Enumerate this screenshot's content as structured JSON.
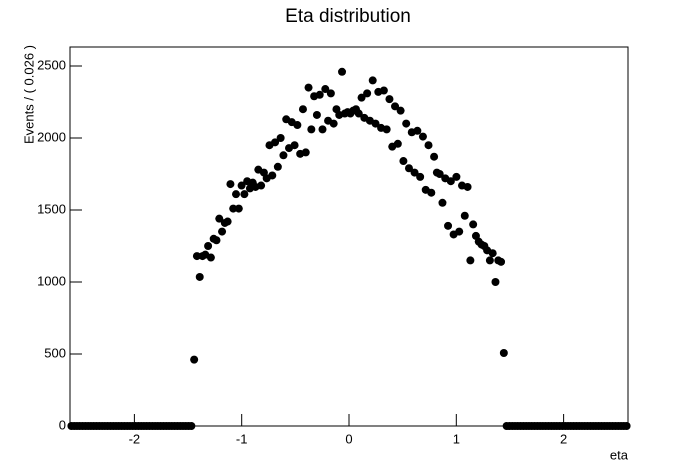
{
  "chart_data": {
    "type": "scatter",
    "title": "Eta distribution",
    "x_label": "eta",
    "y_label": "Events / ( 0.026 )",
    "color": "#000000",
    "xlim": [
      -2.6,
      2.6
    ],
    "ylim": [
      0,
      2632
    ],
    "xticks": [
      -2,
      -1,
      0,
      1,
      2
    ],
    "yticks": [
      0,
      500,
      1000,
      1500,
      2000,
      2500
    ],
    "x": [
      -2.587,
      -2.561,
      -2.535,
      -2.509,
      -2.483,
      -2.457,
      -2.431,
      -2.405,
      -2.379,
      -2.353,
      -2.327,
      -2.301,
      -2.275,
      -2.249,
      -2.223,
      -2.197,
      -2.171,
      -2.145,
      -2.119,
      -2.093,
      -2.067,
      -2.041,
      -2.015,
      -1.989,
      -1.963,
      -1.937,
      -1.911,
      -1.885,
      -1.859,
      -1.833,
      -1.807,
      -1.781,
      -1.755,
      -1.729,
      -1.703,
      -1.677,
      -1.651,
      -1.625,
      -1.599,
      -1.573,
      -1.547,
      -1.521,
      -1.495,
      -1.469,
      -1.443,
      -1.417,
      -1.391,
      -1.365,
      -1.339,
      -1.313,
      -1.287,
      -1.261,
      -1.235,
      -1.209,
      -1.183,
      -1.157,
      -1.131,
      -1.105,
      -1.079,
      -1.053,
      -1.027,
      -1.001,
      -0.975,
      -0.949,
      -0.923,
      -0.897,
      -0.871,
      -0.845,
      -0.819,
      -0.793,
      -0.767,
      -0.741,
      -0.715,
      -0.689,
      -0.663,
      -0.637,
      -0.611,
      -0.585,
      -0.559,
      -0.533,
      -0.507,
      -0.481,
      -0.455,
      -0.429,
      -0.403,
      -0.377,
      -0.351,
      -0.325,
      -0.299,
      -0.273,
      -0.247,
      -0.221,
      -0.195,
      -0.169,
      -0.143,
      -0.117,
      -0.091,
      -0.065,
      -0.039,
      -0.013,
      0.013,
      0.039,
      0.065,
      0.091,
      0.117,
      0.143,
      0.169,
      0.195,
      0.221,
      0.247,
      0.273,
      0.299,
      0.325,
      0.351,
      0.377,
      0.403,
      0.429,
      0.455,
      0.481,
      0.507,
      0.533,
      0.559,
      0.585,
      0.611,
      0.637,
      0.663,
      0.689,
      0.715,
      0.741,
      0.767,
      0.793,
      0.819,
      0.845,
      0.871,
      0.897,
      0.923,
      0.949,
      0.975,
      1.001,
      1.027,
      1.053,
      1.079,
      1.105,
      1.131,
      1.157,
      1.183,
      1.209,
      1.235,
      1.261,
      1.287,
      1.313,
      1.339,
      1.365,
      1.391,
      1.417,
      1.443,
      1.469,
      1.495,
      1.521,
      1.547,
      1.573,
      1.599,
      1.625,
      1.651,
      1.677,
      1.703,
      1.729,
      1.755,
      1.781,
      1.807,
      1.833,
      1.859,
      1.885,
      1.911,
      1.937,
      1.963,
      1.989,
      2.015,
      2.041,
      2.067,
      2.093,
      2.119,
      2.145,
      2.171,
      2.197,
      2.223,
      2.249,
      2.275,
      2.301,
      2.327,
      2.353,
      2.379,
      2.405,
      2.431,
      2.457,
      2.483,
      2.509,
      2.535,
      2.561,
      2.587
    ],
    "values": [
      0,
      0,
      0,
      0,
      0,
      0,
      0,
      0,
      0,
      0,
      0,
      0,
      0,
      0,
      0,
      0,
      0,
      0,
      0,
      0,
      0,
      0,
      0,
      0,
      0,
      0,
      0,
      0,
      0,
      0,
      0,
      0,
      0,
      0,
      0,
      0,
      0,
      0,
      0,
      0,
      0,
      0,
      0,
      0,
      461,
      1180,
      1035,
      1180,
      1190,
      1250,
      1170,
      1300,
      1290,
      1440,
      1350,
      1410,
      1420,
      1680,
      1510,
      1610,
      1510,
      1670,
      1610,
      1700,
      1650,
      1690,
      1660,
      1780,
      1670,
      1760,
      1720,
      1950,
      1740,
      1970,
      1800,
      2000,
      1880,
      2130,
      1930,
      2110,
      1950,
      2090,
      1890,
      2200,
      1900,
      2350,
      2060,
      2290,
      2160,
      2300,
      2060,
      2340,
      2120,
      2310,
      2100,
      2200,
      2160,
      2460,
      2170,
      2180,
      2170,
      2190,
      2200,
      2170,
      2280,
      2140,
      2310,
      2120,
      2400,
      2100,
      2320,
      2070,
      2330,
      2060,
      2270,
      1940,
      2220,
      1960,
      2190,
      1840,
      2100,
      1790,
      2040,
      1760,
      2050,
      1730,
      2010,
      1640,
      1950,
      1620,
      1870,
      1760,
      1750,
      1550,
      1720,
      1390,
      1700,
      1330,
      1730,
      1350,
      1670,
      1460,
      1660,
      1150,
      1400,
      1320,
      1280,
      1260,
      1250,
      1220,
      1150,
      1200,
      1000,
      1150,
      1140,
      507,
      0,
      0,
      0,
      0,
      0,
      0,
      0,
      0,
      0,
      0,
      0,
      0,
      0,
      0,
      0,
      0,
      0,
      0,
      0,
      0,
      0,
      0,
      0,
      0,
      0,
      0,
      0,
      0,
      0,
      0,
      0,
      0,
      0,
      0,
      0,
      0,
      0,
      0,
      0,
      0,
      0,
      0,
      0,
      0
    ]
  }
}
